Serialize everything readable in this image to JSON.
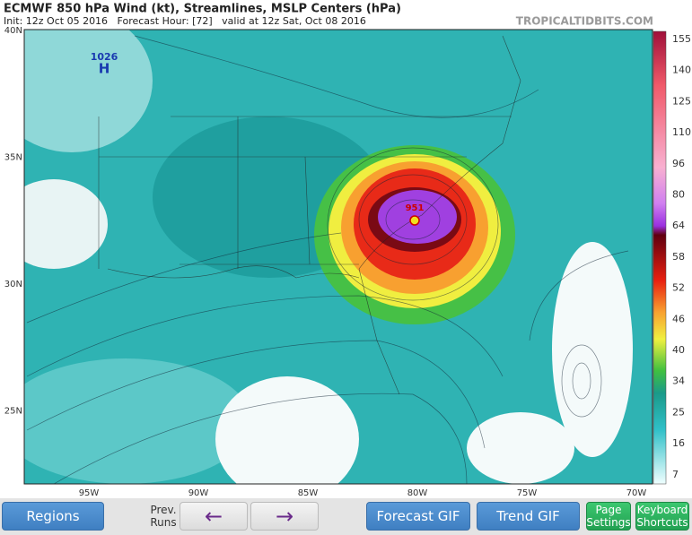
{
  "header": {
    "title": "ECMWF 850 hPa Wind (kt), Streamlines, MSLP Centers (hPa)",
    "subtitle": "Init: 12z Oct 05 2016   Forecast Hour: [72]   valid at 12z Sat, Oct 08 2016",
    "watermark": "TROPICALTIDBITS.COM"
  },
  "map": {
    "lat_labels": [
      "40N",
      "35N",
      "30N",
      "25N"
    ],
    "lon_labels": [
      "95W",
      "90W",
      "85W",
      "80W",
      "75W",
      "70W"
    ],
    "high": {
      "pressure": "1026",
      "symbol": "H"
    },
    "low": {
      "pressure": "951"
    }
  },
  "colorbar": {
    "labels": [
      "155",
      "140",
      "125",
      "110",
      "96",
      "80",
      "64",
      "58",
      "52",
      "46",
      "40",
      "34",
      "25",
      "16",
      "7"
    ]
  },
  "buttons": {
    "regions": "Regions",
    "prev_runs": "Prev. Runs",
    "forecast_gif": "Forecast GIF",
    "trend_gif": "Trend GIF",
    "page_settings": "Page Settings",
    "keyboard_shortcuts": "Keyboard Shortcuts"
  }
}
